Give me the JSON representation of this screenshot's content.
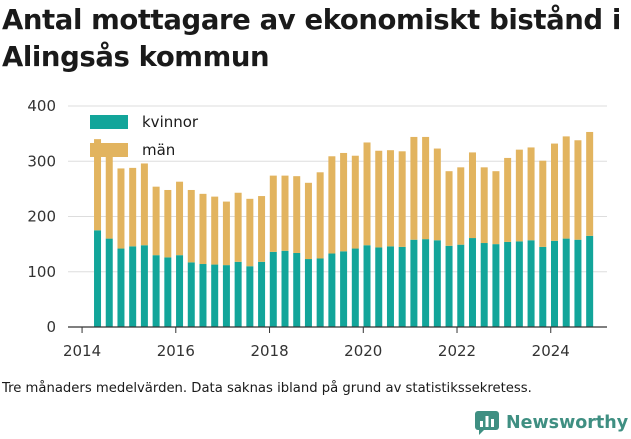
{
  "title": "Antal mottagare av ekonomiskt bistånd i Alingsås kommun",
  "caption": "Tre månaders medelvärden. Data saknas ibland på grund av statistikssekretess.",
  "brand": {
    "name": "Newsworthy",
    "icon": "newsworthy-logo-icon",
    "color": "#3f8f82"
  },
  "colors": {
    "kvinnor": "#12a59a",
    "man": "#e2b45f",
    "axis": "#333333",
    "grid": "#dddddd"
  },
  "chart_data": {
    "type": "bar",
    "stacked": true,
    "grid": true,
    "legend_position": "top-left",
    "ylim": [
      0,
      400
    ],
    "y_ticks": [
      0,
      100,
      200,
      300,
      400
    ],
    "x_ticks": [
      "2014",
      "2016",
      "2018",
      "2020",
      "2022",
      "2024"
    ],
    "x_tick_values": [
      2014,
      2016,
      2018,
      2020,
      2022,
      2024
    ],
    "x_range": [
      2013.7,
      2025.2
    ],
    "x": [
      2014.33,
      2014.58,
      2014.83,
      2015.08,
      2015.33,
      2015.58,
      2015.83,
      2016.08,
      2016.33,
      2016.58,
      2016.83,
      2017.08,
      2017.33,
      2017.58,
      2017.83,
      2018.08,
      2018.33,
      2018.58,
      2018.83,
      2019.08,
      2019.33,
      2019.58,
      2019.83,
      2020.08,
      2020.33,
      2020.58,
      2020.83,
      2021.08,
      2021.33,
      2021.58,
      2021.83,
      2022.08,
      2022.33,
      2022.58,
      2022.83,
      2023.08,
      2023.33,
      2023.58,
      2023.83,
      2024.08,
      2024.33,
      2024.58,
      2024.83
    ],
    "series": [
      {
        "name": "kvinnor",
        "values": [
          175,
          160,
          142,
          146,
          148,
          130,
          126,
          130,
          117,
          114,
          113,
          112,
          118,
          110,
          118,
          136,
          138,
          134,
          123,
          124,
          133,
          137,
          142,
          148,
          144,
          146,
          145,
          158,
          159,
          157,
          147,
          149,
          161,
          152,
          150,
          154,
          155,
          157,
          145,
          156,
          160,
          158,
          165
        ]
      },
      {
        "name": "män",
        "values": [
          165,
          165,
          145,
          142,
          148,
          124,
          122,
          133,
          131,
          127,
          123,
          115,
          125,
          122,
          119,
          138,
          136,
          139,
          138,
          156,
          176,
          178,
          168,
          186,
          175,
          174,
          173,
          186,
          185,
          166,
          135,
          140,
          155,
          137,
          132,
          152,
          166,
          168,
          156,
          176,
          185,
          180,
          188
        ]
      }
    ]
  }
}
